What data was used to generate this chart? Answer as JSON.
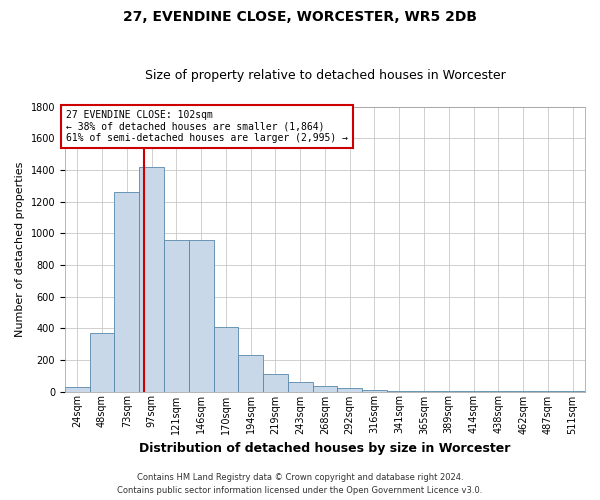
{
  "title1": "27, EVENDINE CLOSE, WORCESTER, WR5 2DB",
  "title2": "Size of property relative to detached houses in Worcester",
  "xlabel": "Distribution of detached houses by size in Worcester",
  "ylabel": "Number of detached properties",
  "footnote1": "Contains HM Land Registry data © Crown copyright and database right 2024.",
  "footnote2": "Contains public sector information licensed under the Open Government Licence v3.0.",
  "bin_labels": [
    "24sqm",
    "48sqm",
    "73sqm",
    "97sqm",
    "121sqm",
    "146sqm",
    "170sqm",
    "194sqm",
    "219sqm",
    "243sqm",
    "268sqm",
    "292sqm",
    "316sqm",
    "341sqm",
    "365sqm",
    "389sqm",
    "414sqm",
    "438sqm",
    "462sqm",
    "487sqm",
    "511sqm"
  ],
  "bar_heights": [
    30,
    370,
    1260,
    1420,
    960,
    960,
    410,
    230,
    110,
    60,
    35,
    20,
    10,
    5,
    5,
    3,
    3,
    2,
    2,
    1,
    1
  ],
  "bar_color": "#c8d8e8",
  "bar_edge_color": "#5588aa",
  "grid_color": "#c8c8c8",
  "property_bin_index": 3,
  "property_label": "27 EVENDINE CLOSE: 102sqm",
  "annotation_line1": "← 38% of detached houses are smaller (1,864)",
  "annotation_line2": "61% of semi-detached houses are larger (2,995) →",
  "annotation_box_facecolor": "#ffffff",
  "annotation_box_edgecolor": "#cc0000",
  "line_color": "#cc0000",
  "ylim": [
    0,
    1800
  ],
  "yticks": [
    0,
    200,
    400,
    600,
    800,
    1000,
    1200,
    1400,
    1600,
    1800
  ],
  "title1_fontsize": 10,
  "title2_fontsize": 9,
  "ylabel_fontsize": 8,
  "xlabel_fontsize": 9,
  "tick_fontsize": 7,
  "annot_fontsize": 7,
  "footnote_fontsize": 6
}
